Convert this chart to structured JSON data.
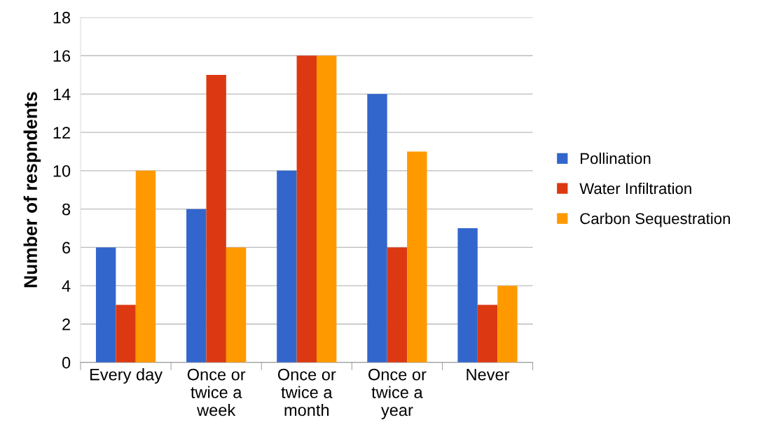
{
  "chart_data": {
    "type": "bar",
    "ylabel": "Number of respndents",
    "categories": [
      "Every day",
      "Once or\ntwice a\nweek",
      "Once or\ntwice a\nmonth",
      "Once or\ntwice a\nyear",
      "Never"
    ],
    "series": [
      {
        "name": "Pollination",
        "color": "#3366cc",
        "values": [
          6,
          8,
          10,
          14,
          7
        ]
      },
      {
        "name": "Water Infiltration",
        "color": "#dc3912",
        "values": [
          3,
          15,
          16,
          6,
          3
        ]
      },
      {
        "name": "Carbon Sequestration",
        "color": "#ff9900",
        "values": [
          10,
          6,
          16,
          11,
          4
        ]
      }
    ],
    "ylim": [
      0,
      18
    ],
    "yticks": [
      0,
      2,
      4,
      6,
      8,
      10,
      12,
      14,
      16,
      18
    ],
    "grid": "y",
    "legend": "right"
  }
}
